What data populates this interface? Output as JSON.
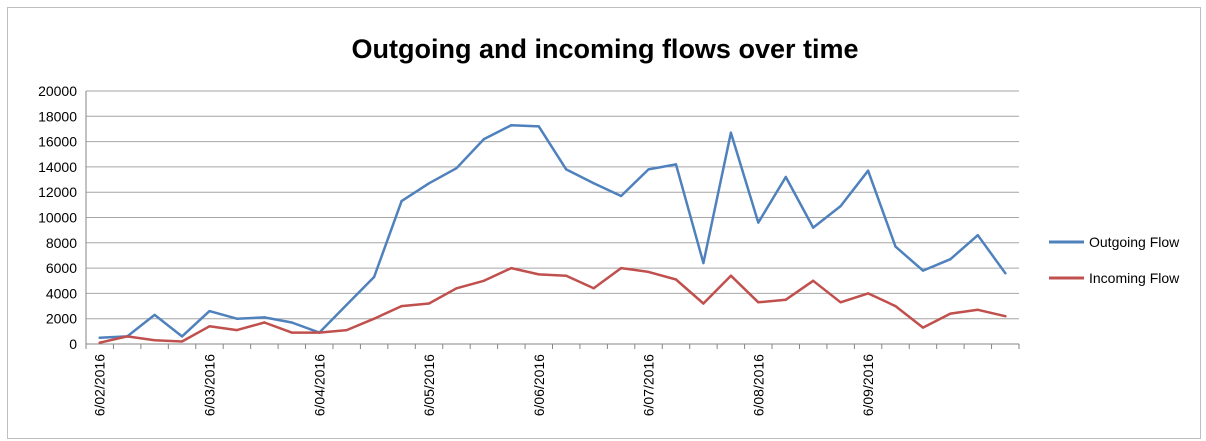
{
  "chart_data": {
    "type": "line",
    "title": "Outgoing and incoming flows over time",
    "xlabel": "",
    "ylabel": "",
    "ylim": [
      0,
      20000
    ],
    "yticks": [
      0,
      2000,
      4000,
      6000,
      8000,
      10000,
      12000,
      14000,
      16000,
      18000,
      20000
    ],
    "x_tick_labels": [
      "6/02/2016",
      "6/03/2016",
      "6/04/2016",
      "6/05/2016",
      "6/06/2016",
      "6/07/2016",
      "6/08/2016",
      "6/09/2016"
    ],
    "x_tick_every": 4,
    "grid": true,
    "legend_position": "right",
    "series": [
      {
        "name": "Outgoing Flow",
        "color": "#4f81bd",
        "values": [
          500,
          600,
          2300,
          600,
          2600,
          2000,
          2100,
          1700,
          900,
          3100,
          5300,
          11300,
          12700,
          13900,
          16200,
          17300,
          17200,
          13800,
          12700,
          11700,
          13800,
          14200,
          6400,
          16700,
          9600,
          13200,
          9200,
          10900,
          13700,
          7700,
          5800,
          6700,
          8600,
          5600
        ]
      },
      {
        "name": "Incoming Flow",
        "color": "#c0504d",
        "values": [
          100,
          600,
          300,
          200,
          1400,
          1100,
          1700,
          900,
          900,
          1100,
          2000,
          3000,
          3200,
          4400,
          5000,
          6000,
          5500,
          5400,
          4400,
          6000,
          5700,
          5100,
          3200,
          5400,
          3300,
          3500,
          5000,
          3300,
          4000,
          3000,
          1300,
          2400,
          2700,
          2200
        ]
      }
    ]
  }
}
